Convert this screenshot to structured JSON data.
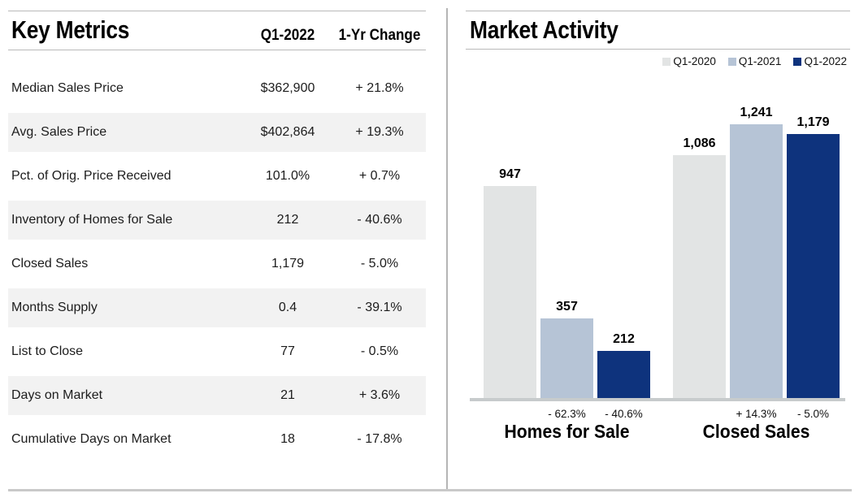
{
  "chart_data": [
    {
      "type": "table",
      "title": "Key Metrics",
      "columns": [
        "Q1-2022",
        "1-Yr Change"
      ],
      "rows": [
        {
          "label": "Median Sales Price",
          "value": "$362,900",
          "change": "+ 21.8%"
        },
        {
          "label": "Avg. Sales Price",
          "value": "$402,864",
          "change": "+ 19.3%"
        },
        {
          "label": "Pct. of Orig. Price Received",
          "value": "101.0%",
          "change": "+ 0.7%"
        },
        {
          "label": "Inventory of Homes for Sale",
          "value": "212",
          "change": "- 40.6%"
        },
        {
          "label": "Closed Sales",
          "value": "1,179",
          "change": "- 5.0%"
        },
        {
          "label": "Months Supply",
          "value": "0.4",
          "change": "- 39.1%"
        },
        {
          "label": "List to Close",
          "value": "77",
          "change": "- 0.5%"
        },
        {
          "label": "Days on Market",
          "value": "21",
          "change": "+ 3.6%"
        },
        {
          "label": "Cumulative Days on Market",
          "value": "18",
          "change": "- 17.8%"
        }
      ]
    },
    {
      "type": "bar",
      "title": "Market Activity",
      "categories": [
        "Homes for Sale",
        "Closed Sales"
      ],
      "series": [
        {
          "name": "Q1-2020",
          "color": "#e2e4e4",
          "values": [
            947,
            1086
          ],
          "value_labels": [
            "947",
            "1,086"
          ],
          "change_labels": [
            "",
            ""
          ]
        },
        {
          "name": "Q1-2021",
          "color": "#b6c4d6",
          "values": [
            357,
            1241
          ],
          "value_labels": [
            "357",
            "1,241"
          ],
          "change_labels": [
            "- 62.3%",
            "+ 14.3%"
          ]
        },
        {
          "name": "Q1-2022",
          "color": "#0e337d",
          "values": [
            212,
            1179
          ],
          "value_labels": [
            "212",
            "1,179"
          ],
          "change_labels": [
            "- 40.6%",
            "- 5.0%"
          ]
        }
      ],
      "legend": {
        "position": "top-right",
        "entries": [
          "Q1-2020",
          "Q1-2021",
          "Q1-2022"
        ]
      },
      "ylim": [
        0,
        1300
      ],
      "grid": false,
      "yaxis_tick_labels": false
    }
  ],
  "rules": {
    "accent_line_color": "#b9b9b9",
    "axis_color": "#c7cbcc",
    "stripe_color": "#f2f2f2"
  }
}
